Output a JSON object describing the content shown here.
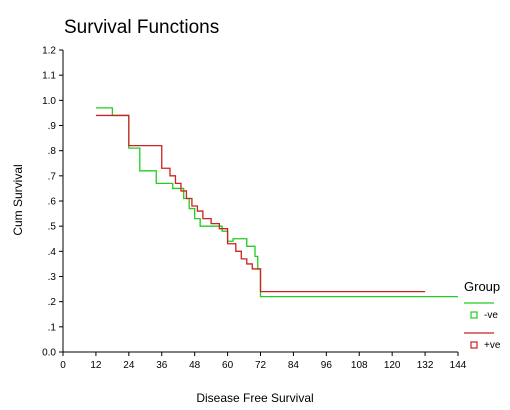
{
  "chart_data": {
    "type": "line",
    "title": "Survival Functions",
    "xlabel": "Disease Free Survival",
    "ylabel": "Cum Survival",
    "xlim": [
      0,
      144
    ],
    "ylim": [
      0,
      1.2
    ],
    "x_ticks": [
      0,
      12,
      24,
      36,
      48,
      60,
      72,
      84,
      96,
      108,
      120,
      132,
      144
    ],
    "x_tick_labels": [
      "0",
      "12",
      "24",
      "36",
      "48",
      "60",
      "72",
      "84",
      "96",
      "108",
      "120",
      "132",
      "144"
    ],
    "y_ticks": [
      0,
      0.1,
      0.2,
      0.3,
      0.4,
      0.5,
      0.6,
      0.7,
      0.8,
      0.9,
      1.0,
      1.1,
      1.2
    ],
    "y_tick_labels": [
      "0.0",
      ".1",
      ".2",
      ".3",
      ".4",
      ".5",
      ".6",
      ".7",
      ".8",
      ".9",
      "1.0",
      "1.1",
      "1.2"
    ],
    "grid": false,
    "legend": {
      "title": "Group",
      "placement": "right"
    },
    "series": [
      {
        "name": "-ve",
        "color": "#22cc22",
        "step": true,
        "points": [
          [
            12,
            0.97
          ],
          [
            18,
            0.94
          ],
          [
            24,
            0.81
          ],
          [
            28,
            0.72
          ],
          [
            34,
            0.67
          ],
          [
            40,
            0.65
          ],
          [
            44,
            0.61
          ],
          [
            46,
            0.57
          ],
          [
            48,
            0.53
          ],
          [
            50,
            0.5
          ],
          [
            58,
            0.48
          ],
          [
            60,
            0.44
          ],
          [
            62,
            0.45
          ],
          [
            67,
            0.42
          ],
          [
            70,
            0.38
          ],
          [
            71,
            0.33
          ],
          [
            72,
            0.22
          ],
          [
            144,
            0.22
          ]
        ]
      },
      {
        "name": "+ve",
        "color": "#cc2222",
        "step": true,
        "points": [
          [
            12,
            0.94
          ],
          [
            24,
            0.82
          ],
          [
            36,
            0.73
          ],
          [
            39,
            0.7
          ],
          [
            41,
            0.67
          ],
          [
            43,
            0.64
          ],
          [
            45,
            0.61
          ],
          [
            47,
            0.58
          ],
          [
            49,
            0.56
          ],
          [
            51,
            0.53
          ],
          [
            54,
            0.51
          ],
          [
            57,
            0.49
          ],
          [
            60,
            0.43
          ],
          [
            63,
            0.4
          ],
          [
            65,
            0.37
          ],
          [
            67,
            0.35
          ],
          [
            69,
            0.33
          ],
          [
            72,
            0.24
          ],
          [
            132,
            0.24
          ]
        ]
      }
    ]
  }
}
